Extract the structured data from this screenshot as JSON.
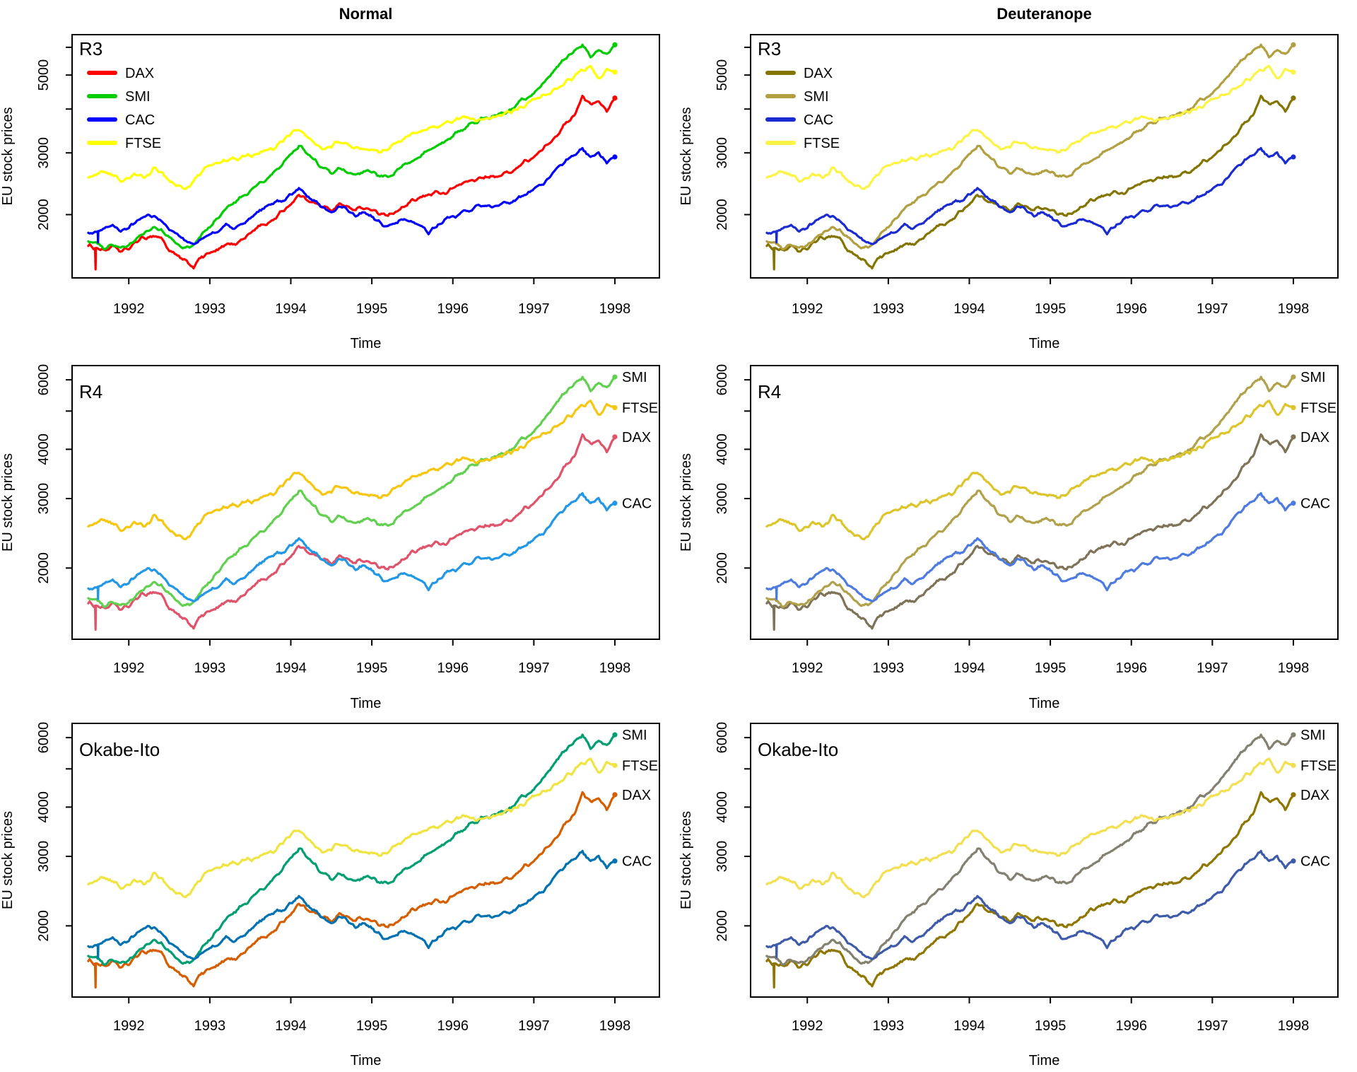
{
  "figure": {
    "columns": [
      {
        "title": "Normal",
        "variant": "normal"
      },
      {
        "title": "Deuteranope",
        "variant": "deuteranope"
      }
    ],
    "rows": [
      {
        "badge": "R3",
        "legend_style": "box",
        "legend_items": [
          "DAX",
          "SMI",
          "CAC",
          "FTSE"
        ],
        "y_ticks": [
          2000,
          3000,
          4000,
          5000,
          6000
        ],
        "y_labeled": [
          2000,
          3000,
          5000
        ],
        "palettes": {
          "normal": {
            "DAX": "#FF0000",
            "SMI": "#00CD00",
            "CAC": "#0000FF",
            "FTSE": "#FFFF00"
          },
          "deuteranope": {
            "DAX": "#847400",
            "SMI": "#B2A040",
            "CAC": "#1B2BD2",
            "FTSE": "#FCF344"
          }
        }
      },
      {
        "badge": "R4",
        "legend_style": "line-end-labels",
        "legend_items": [
          "SMI",
          "FTSE",
          "DAX",
          "CAC"
        ],
        "y_ticks": [
          2000,
          3000,
          4000,
          5000,
          6000
        ],
        "y_labeled": [
          2000,
          3000,
          4000,
          6000
        ],
        "palettes": {
          "normal": {
            "DAX": "#DF536B",
            "SMI": "#61D04F",
            "CAC": "#2297E6",
            "FTSE": "#F5C710"
          },
          "deuteranope": {
            "DAX": "#7E7257",
            "SMI": "#B1A14B",
            "CAC": "#4D7BE0",
            "FTSE": "#DCC52B"
          }
        }
      },
      {
        "badge": "Okabe-Ito",
        "legend_style": "line-end-labels",
        "legend_items": [
          "SMI",
          "FTSE",
          "DAX",
          "CAC"
        ],
        "y_ticks": [
          2000,
          3000,
          4000,
          5000,
          6000
        ],
        "y_labeled": [
          2000,
          3000,
          4000,
          6000
        ],
        "palettes": {
          "normal": {
            "DAX": "#D55E00",
            "SMI": "#009E73",
            "CAC": "#0072B2",
            "FTSE": "#F0E442"
          },
          "deuteranope": {
            "DAX": "#8E7600",
            "SMI": "#83806F",
            "CAC": "#3D5BA9",
            "FTSE": "#F3DF52"
          }
        }
      }
    ]
  },
  "chart_data": {
    "type": "line",
    "title": "",
    "xlabel": "Time",
    "ylabel": "EU stock prices",
    "yscale": "log",
    "xlim": [
      1991.3,
      1998.55
    ],
    "ylim": [
      1320,
      6520
    ],
    "x_ticks": [
      1992,
      1993,
      1994,
      1995,
      1996,
      1997,
      1998
    ],
    "grid": false,
    "x": [
      1991.5,
      1991.6,
      1991.7,
      1991.8,
      1991.9,
      1992.0,
      1992.1,
      1992.2,
      1992.3,
      1992.4,
      1992.5,
      1992.6,
      1992.7,
      1992.8,
      1992.9,
      1993.0,
      1993.1,
      1993.2,
      1993.3,
      1993.4,
      1993.5,
      1993.6,
      1993.7,
      1993.8,
      1993.9,
      1994.0,
      1994.1,
      1994.2,
      1994.3,
      1994.4,
      1994.5,
      1994.6,
      1994.7,
      1994.8,
      1994.9,
      1995.0,
      1995.1,
      1995.2,
      1995.3,
      1995.4,
      1995.5,
      1995.6,
      1995.7,
      1995.8,
      1995.9,
      1996.0,
      1996.1,
      1996.2,
      1996.3,
      1996.4,
      1996.5,
      1996.6,
      1996.7,
      1996.8,
      1996.9,
      1997.0,
      1997.1,
      1997.2,
      1997.3,
      1997.4,
      1997.5,
      1997.6,
      1997.7,
      1997.8,
      1997.9,
      1998.0
    ],
    "series": [
      {
        "name": "DAX",
        "values": [
          1628,
          1610,
          1580,
          1620,
          1570,
          1600,
          1680,
          1720,
          1740,
          1720,
          1580,
          1520,
          1470,
          1420,
          1520,
          1550,
          1580,
          1640,
          1650,
          1700,
          1770,
          1850,
          1880,
          1950,
          2050,
          2150,
          2270,
          2220,
          2150,
          2100,
          2060,
          2150,
          2100,
          2060,
          2100,
          2070,
          2020,
          1980,
          2040,
          2100,
          2180,
          2230,
          2280,
          2330,
          2280,
          2380,
          2450,
          2490,
          2530,
          2550,
          2560,
          2600,
          2650,
          2720,
          2850,
          2900,
          3050,
          3230,
          3420,
          3640,
          3850,
          4380,
          4100,
          4200,
          3950,
          4300
        ]
      },
      {
        "name": "SMI",
        "values": [
          1678,
          1650,
          1620,
          1640,
          1600,
          1640,
          1700,
          1780,
          1830,
          1800,
          1720,
          1650,
          1600,
          1630,
          1750,
          1850,
          1950,
          2100,
          2150,
          2250,
          2320,
          2450,
          2500,
          2650,
          2800,
          2950,
          3150,
          2980,
          2850,
          2700,
          2620,
          2700,
          2620,
          2580,
          2650,
          2640,
          2580,
          2550,
          2650,
          2780,
          2850,
          2950,
          3050,
          3120,
          3220,
          3350,
          3500,
          3600,
          3700,
          3750,
          3830,
          3900,
          3950,
          4150,
          4300,
          4450,
          4700,
          5000,
          5300,
          5600,
          5800,
          6100,
          5700,
          5900,
          5750,
          6100
        ]
      },
      {
        "name": "CAC",
        "values": [
          1775,
          1760,
          1820,
          1850,
          1800,
          1830,
          1900,
          2000,
          1980,
          1920,
          1810,
          1750,
          1680,
          1640,
          1700,
          1750,
          1800,
          1870,
          1820,
          1880,
          1950,
          2050,
          2100,
          2150,
          2200,
          2280,
          2360,
          2250,
          2200,
          2100,
          2050,
          2100,
          2050,
          1980,
          2030,
          1980,
          1900,
          1840,
          1900,
          1950,
          1900,
          1850,
          1780,
          1850,
          1920,
          1980,
          2020,
          2060,
          2100,
          2120,
          2100,
          2130,
          2160,
          2220,
          2300,
          2350,
          2450,
          2550,
          2700,
          2850,
          2950,
          3080,
          2900,
          3000,
          2820,
          2920
        ]
      },
      {
        "name": "FTSE",
        "values": [
          2550,
          2600,
          2650,
          2600,
          2500,
          2550,
          2600,
          2550,
          2700,
          2650,
          2500,
          2420,
          2360,
          2500,
          2650,
          2750,
          2800,
          2850,
          2900,
          2920,
          2950,
          3000,
          3050,
          3100,
          3250,
          3400,
          3520,
          3350,
          3200,
          3100,
          3150,
          3250,
          3150,
          3100,
          3080,
          3050,
          3020,
          3080,
          3200,
          3300,
          3380,
          3450,
          3500,
          3550,
          3620,
          3700,
          3750,
          3780,
          3720,
          3760,
          3800,
          3850,
          3950,
          4000,
          4100,
          4250,
          4350,
          4450,
          4600,
          4800,
          4950,
          5150,
          5250,
          4900,
          5150,
          5100
        ]
      }
    ],
    "spikes": [
      {
        "series": "DAX",
        "x": 1991.59,
        "factor": 0.87
      },
      {
        "series": "CAC",
        "x": 1991.62,
        "factor": 0.93
      }
    ],
    "draw_order": [
      "DAX",
      "SMI",
      "CAC",
      "FTSE"
    ]
  }
}
